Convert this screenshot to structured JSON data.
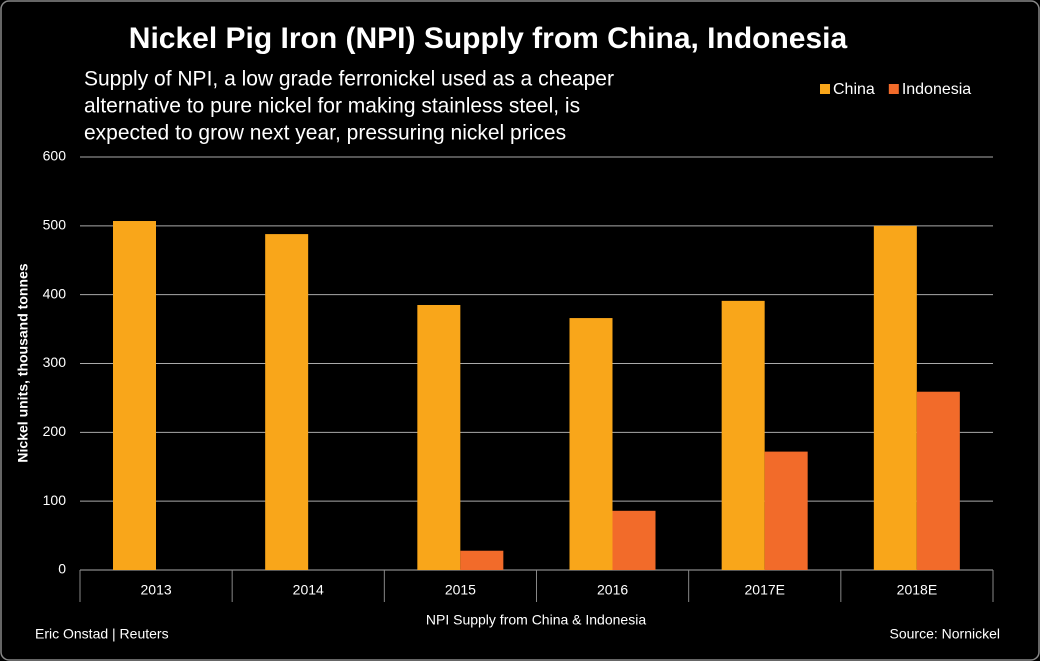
{
  "chart_data": {
    "type": "bar",
    "title": "Nickel Pig Iron (NPI) Supply from China, Indonesia",
    "subtitle": [
      "Supply of NPI, a low grade ferronickel used as a cheaper",
      "alternative to pure nickel for making stainless steel, is",
      "expected to grow next year, pressuring nickel prices"
    ],
    "x_label": "NPI Supply from China & Indonesia",
    "y_label": "Nickel units, thousand tonnes",
    "credit": "Eric Onstad | Reuters",
    "source": "Source: Nornickel",
    "categories": [
      "2013",
      "2014",
      "2015",
      "2016",
      "2017E",
      "2018E"
    ],
    "series": [
      {
        "name": "China",
        "color": "#f9a61a",
        "values": [
          507,
          488,
          385,
          366,
          391,
          500
        ]
      },
      {
        "name": "Indonesia",
        "color": "#f26b2a",
        "values": [
          0,
          0,
          28,
          86,
          172,
          259
        ]
      }
    ],
    "ylim": [
      0,
      600
    ],
    "yticks": [
      0,
      100,
      200,
      300,
      400,
      500,
      600
    ],
    "grid": true,
    "legend": "top-right"
  }
}
